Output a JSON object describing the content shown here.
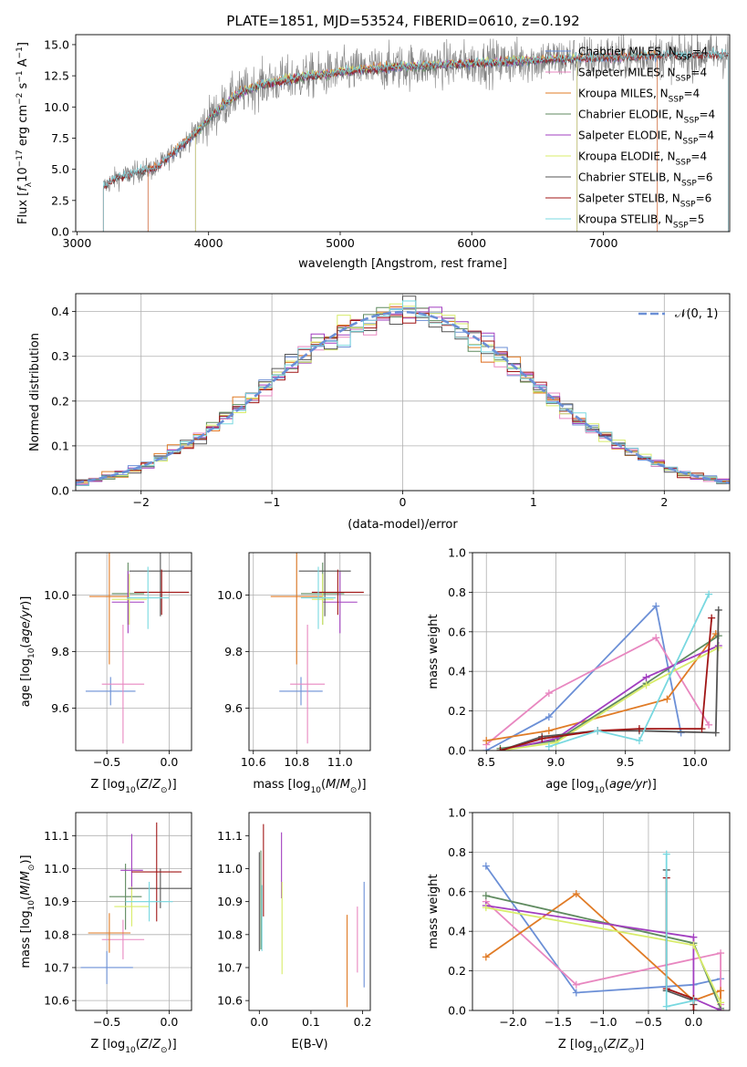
{
  "figure": {
    "title": "PLATE=1851, MJD=53524, FIBERID=0610, z=0.192"
  },
  "colors": {
    "chabrier_miles": "#6b8fd6",
    "salpeter_miles": "#e887c0",
    "kroupa_miles": "#e07b26",
    "chabrier_elodie": "#5f8a5f",
    "salpeter_elodie": "#a23fc0",
    "kroupa_elodie": "#d8ec6a",
    "chabrier_stelib": "#555555",
    "salpeter_stelib": "#a01515",
    "kroupa_stelib": "#78d8e0",
    "data_spectrum": "#808080",
    "normal_curve": "#6b8fd6",
    "grid": "#b0b0b0"
  },
  "chart_data": [
    {
      "id": "spectrum",
      "type": "line",
      "title": "PLATE=1851, MJD=53524, FIBERID=0610, z=0.192",
      "xlabel": "wavelength [Angstrom, rest frame]",
      "ylabel": "Flux [f_λ10^-17 erg cm^-2 s^-1 A^-1]",
      "xlim": [
        2990,
        7960
      ],
      "ylim": [
        0,
        15.8
      ],
      "xticks": [
        3000,
        4000,
        5000,
        6000,
        7000
      ],
      "yticks": [
        0.0,
        2.5,
        5.0,
        7.5,
        10.0,
        12.5,
        15.0
      ],
      "grid": false,
      "legend_position": "top-right",
      "legend": [
        "Chabrier MILES, N_SSP=4",
        "Salpeter MILES, N_SSP=4",
        "Kroupa MILES, N_SSP=4",
        "Chabrier ELODIE, N_SSP=4",
        "Salpeter ELODIE, N_SSP=4",
        "Kroupa ELODIE, N_SSP=4",
        "Chabrier STELIB, N_SSP=6",
        "Salpeter STELIB, N_SSP=6",
        "Kroupa STELIB, N_SSP=5"
      ],
      "continuum": {
        "x": [
          3200,
          3300,
          3400,
          3500,
          3600,
          3700,
          3800,
          3900,
          4000,
          4100,
          4200,
          4300,
          4400,
          4600,
          4800,
          5000,
          5200,
          5400,
          5600,
          5800,
          6000,
          6200,
          6400,
          6600,
          6800,
          7000,
          7200,
          7400,
          7600,
          7800,
          7950
        ],
        "y": [
          3.6,
          4.3,
          4.6,
          4.9,
          5.1,
          6.0,
          7.0,
          7.9,
          9.0,
          10.0,
          10.9,
          11.4,
          11.8,
          12.2,
          12.5,
          12.8,
          13.0,
          13.2,
          13.3,
          13.4,
          13.5,
          13.6,
          13.7,
          13.8,
          13.9,
          14.0,
          14.0,
          14.1,
          14.1,
          14.2,
          14.2
        ]
      },
      "model_ranges": {
        "chabrier_miles": [
          3540,
          7410
        ],
        "salpeter_miles": [
          3540,
          7410
        ],
        "kroupa_miles": [
          3540,
          7410
        ],
        "chabrier_elodie": [
          3900,
          6800
        ],
        "salpeter_elodie": [
          3900,
          6800
        ],
        "kroupa_elodie": [
          3900,
          6800
        ],
        "chabrier_stelib": [
          3200,
          7950
        ],
        "salpeter_stelib": [
          3200,
          7950
        ],
        "kroupa_stelib": [
          3200,
          7950
        ]
      }
    },
    {
      "id": "residual_hist",
      "type": "line",
      "xlabel": "(data-model)/error",
      "ylabel": "Normed distribution",
      "xlim": [
        -2.5,
        2.5
      ],
      "ylim": [
        0,
        0.44
      ],
      "xticks": [
        -2,
        -1,
        0,
        1,
        2
      ],
      "yticks": [
        0.0,
        0.1,
        0.2,
        0.3,
        0.4
      ],
      "grid": true,
      "legend_position": "top-right",
      "legend": [
        "N(0,1)"
      ],
      "bin_width": 0.1
    },
    {
      "id": "age_vs_z",
      "type": "scatter",
      "xlabel": "Z [log10(Z/Z⊙)]",
      "ylabel": "age [log10(age/yr)]",
      "xlim": [
        -0.75,
        0.18
      ],
      "ylim": [
        9.45,
        10.15
      ],
      "xticks": [
        -0.5,
        0.0
      ],
      "yticks": [
        9.6,
        9.8,
        10.0
      ],
      "grid": true,
      "points": [
        {
          "series": "chabrier_miles",
          "x": -0.47,
          "y": 9.66,
          "xerr": 0.2,
          "yerr": 0.05
        },
        {
          "series": "salpeter_miles",
          "x": -0.37,
          "y": 9.685,
          "xerr": 0.17,
          "yerr": 0.21
        },
        {
          "series": "kroupa_miles",
          "x": -0.48,
          "y": 9.995,
          "xerr": 0.16,
          "yerr": 0.24
        },
        {
          "series": "chabrier_elodie",
          "x": -0.33,
          "y": 10.005,
          "xerr": 0.13,
          "yerr": 0.11
        },
        {
          "series": "salpeter_elodie",
          "x": -0.33,
          "y": 9.975,
          "xerr": 0.13,
          "yerr": 0.11
        },
        {
          "series": "kroupa_elodie",
          "x": -0.32,
          "y": 9.985,
          "xerr": 0.14,
          "yerr": 0.09
        },
        {
          "series": "chabrier_stelib",
          "x": -0.07,
          "y": 10.085,
          "xerr": 0.25,
          "yerr": 0.16
        },
        {
          "series": "salpeter_stelib",
          "x": -0.06,
          "y": 10.01,
          "xerr": 0.22,
          "yerr": 0.08
        },
        {
          "series": "kroupa_stelib",
          "x": -0.17,
          "y": 9.99,
          "xerr": 0.17,
          "yerr": 0.11
        }
      ]
    },
    {
      "id": "age_vs_mass",
      "type": "scatter",
      "xlabel": "mass [log10(M/M⊙)]",
      "ylabel": "",
      "xlim": [
        10.58,
        11.14
      ],
      "ylim": [
        9.45,
        10.15
      ],
      "xticks": [
        10.6,
        10.8,
        11.0
      ],
      "yticks": [
        9.6,
        9.8,
        10.0
      ],
      "grid": true,
      "points": [
        {
          "series": "chabrier_miles",
          "x": 10.82,
          "y": 9.66,
          "xerr": 0.1,
          "yerr": 0.05
        },
        {
          "series": "salpeter_miles",
          "x": 10.85,
          "y": 9.685,
          "xerr": 0.08,
          "yerr": 0.21
        },
        {
          "series": "kroupa_miles",
          "x": 10.8,
          "y": 9.995,
          "xerr": 0.12,
          "yerr": 0.24
        },
        {
          "series": "chabrier_elodie",
          "x": 10.92,
          "y": 10.005,
          "xerr": 0.1,
          "yerr": 0.11
        },
        {
          "series": "salpeter_elodie",
          "x": 11.0,
          "y": 9.975,
          "xerr": 0.08,
          "yerr": 0.11
        },
        {
          "series": "kroupa_elodie",
          "x": 10.92,
          "y": 9.985,
          "xerr": 0.05,
          "yerr": 0.09
        },
        {
          "series": "chabrier_stelib",
          "x": 10.93,
          "y": 10.085,
          "xerr": 0.12,
          "yerr": 0.16
        },
        {
          "series": "salpeter_stelib",
          "x": 10.99,
          "y": 10.01,
          "xerr": 0.12,
          "yerr": 0.08
        },
        {
          "series": "kroupa_stelib",
          "x": 10.9,
          "y": 9.99,
          "xerr": 0.08,
          "yerr": 0.11
        }
      ]
    },
    {
      "id": "mass_weight_vs_age",
      "type": "line",
      "xlabel": "age [log10(age/yr)]",
      "ylabel": "mass weight",
      "xlim": [
        8.4,
        10.25
      ],
      "ylim": [
        0.0,
        1.0
      ],
      "xticks": [
        8.5,
        9.0,
        9.5,
        10.0
      ],
      "yticks": [
        0.0,
        0.2,
        0.4,
        0.6,
        0.8,
        1.0
      ],
      "grid": true,
      "series": [
        {
          "key": "chabrier_miles",
          "x": [
            8.5,
            8.95,
            9.72,
            9.9
          ],
          "y": [
            0.0,
            0.17,
            0.73,
            0.09
          ]
        },
        {
          "key": "salpeter_miles",
          "x": [
            8.5,
            8.95,
            9.72,
            10.1
          ],
          "y": [
            0.03,
            0.29,
            0.57,
            0.13
          ]
        },
        {
          "key": "kroupa_miles",
          "x": [
            8.5,
            8.95,
            9.8,
            10.15
          ],
          "y": [
            0.05,
            0.1,
            0.26,
            0.59
          ]
        },
        {
          "key": "chabrier_elodie",
          "x": [
            8.6,
            9.0,
            9.65,
            10.17
          ],
          "y": [
            0.01,
            0.05,
            0.34,
            0.58
          ]
        },
        {
          "key": "salpeter_elodie",
          "x": [
            8.6,
            9.0,
            9.65,
            10.17
          ],
          "y": [
            0.0,
            0.06,
            0.37,
            0.53
          ]
        },
        {
          "key": "kroupa_elodie",
          "x": [
            8.6,
            9.0,
            9.65,
            10.17
          ],
          "y": [
            0.0,
            0.04,
            0.33,
            0.52
          ]
        },
        {
          "key": "chabrier_stelib",
          "x": [
            8.6,
            8.9,
            9.3,
            9.6,
            10.15,
            10.17
          ],
          "y": [
            0.0,
            0.07,
            0.1,
            0.1,
            0.09,
            0.71
          ]
        },
        {
          "key": "salpeter_stelib",
          "x": [
            8.6,
            8.9,
            9.3,
            9.6,
            10.05,
            10.12
          ],
          "y": [
            0.0,
            0.06,
            0.1,
            0.11,
            0.11,
            0.67
          ]
        },
        {
          "key": "kroupa_stelib",
          "x": [
            8.95,
            9.3,
            9.6,
            10.1
          ],
          "y": [
            0.02,
            0.1,
            0.05,
            0.79
          ]
        }
      ]
    },
    {
      "id": "mass_vs_z",
      "type": "scatter",
      "xlabel": "Z [log10(Z/Z⊙)]",
      "ylabel": "mass [log10(M/M⊙)]",
      "xlim": [
        -0.75,
        0.18
      ],
      "ylim": [
        10.57,
        11.17
      ],
      "xticks": [
        -0.5,
        0.0
      ],
      "yticks": [
        10.6,
        10.7,
        10.8,
        10.9,
        11.0,
        11.1
      ],
      "grid": true,
      "points": [
        {
          "series": "chabrier_miles",
          "x": -0.5,
          "y": 10.7,
          "xerr": 0.21,
          "yerr": 0.05
        },
        {
          "series": "salpeter_miles",
          "x": -0.37,
          "y": 10.785,
          "xerr": 0.17,
          "yerr": 0.06
        },
        {
          "series": "kroupa_miles",
          "x": -0.48,
          "y": 10.805,
          "xerr": 0.17,
          "yerr": 0.06
        },
        {
          "series": "chabrier_elodie",
          "x": -0.35,
          "y": 10.915,
          "xerr": 0.13,
          "yerr": 0.1
        },
        {
          "series": "salpeter_elodie",
          "x": -0.3,
          "y": 10.995,
          "xerr": 0.09,
          "yerr": 0.11
        },
        {
          "series": "kroupa_elodie",
          "x": -0.3,
          "y": 10.885,
          "xerr": 0.14,
          "yerr": 0.06
        },
        {
          "series": "chabrier_stelib",
          "x": -0.07,
          "y": 10.94,
          "xerr": 0.26,
          "yerr": 0.06
        },
        {
          "series": "salpeter_stelib",
          "x": -0.1,
          "y": 10.99,
          "xerr": 0.2,
          "yerr": 0.15
        },
        {
          "series": "kroupa_stelib",
          "x": -0.16,
          "y": 10.9,
          "xerr": 0.19,
          "yerr": 0.06
        }
      ]
    },
    {
      "id": "mass_vs_ebv",
      "type": "scatter",
      "xlabel": "E(B-V)",
      "ylabel": "",
      "xlim": [
        -0.02,
        0.215
      ],
      "ylim": [
        10.57,
        11.17
      ],
      "xticks": [
        0.0,
        0.1,
        0.2
      ],
      "yticks": [
        10.6,
        10.7,
        10.8,
        10.9,
        11.0,
        11.1
      ],
      "grid": false,
      "points": [
        {
          "series": "chabrier_miles",
          "x": 0.203,
          "y": 10.8,
          "xerr": 0,
          "yerr": 0.16
        },
        {
          "series": "salpeter_miles",
          "x": 0.19,
          "y": 10.785,
          "xerr": 0,
          "yerr": 0.1
        },
        {
          "series": "kroupa_miles",
          "x": 0.17,
          "y": 10.72,
          "xerr": 0,
          "yerr": 0.14
        },
        {
          "series": "chabrier_elodie",
          "x": 0.003,
          "y": 10.905,
          "xerr": 0,
          "yerr": 0.15
        },
        {
          "series": "salpeter_elodie",
          "x": 0.043,
          "y": 11.01,
          "xerr": 0,
          "yerr": 0.1
        },
        {
          "series": "kroupa_elodie",
          "x": 0.044,
          "y": 10.82,
          "xerr": 0,
          "yerr": 0.14
        },
        {
          "series": "chabrier_stelib",
          "x": 0.0,
          "y": 10.9,
          "xerr": 0,
          "yerr": 0.15
        },
        {
          "series": "salpeter_stelib",
          "x": 0.008,
          "y": 10.995,
          "xerr": 0,
          "yerr": 0.14
        },
        {
          "series": "kroupa_stelib",
          "x": 0.005,
          "y": 10.85,
          "xerr": 0,
          "yerr": 0.1
        }
      ]
    },
    {
      "id": "mass_weight_vs_z",
      "type": "line",
      "xlabel": "Z [log10(Z/Z⊙)]",
      "ylabel": "mass weight",
      "xlim": [
        -2.45,
        0.4
      ],
      "ylim": [
        0.0,
        1.0
      ],
      "xticks": [
        -2.0,
        -1.5,
        -1.0,
        -0.5,
        0.0
      ],
      "yticks": [
        0.0,
        0.2,
        0.4,
        0.6,
        0.8,
        1.0
      ],
      "grid": true,
      "series": [
        {
          "key": "chabrier_miles",
          "x": [
            -2.3,
            -1.3,
            0.0,
            0.3
          ],
          "y": [
            0.73,
            0.09,
            0.13,
            0.16
          ]
        },
        {
          "key": "salpeter_miles",
          "x": [
            -2.3,
            -1.3,
            0.3,
            0.3
          ],
          "y": [
            0.55,
            0.13,
            0.29,
            0.03
          ]
        },
        {
          "key": "kroupa_miles",
          "x": [
            -2.3,
            -1.3,
            0.0,
            0.3,
            0.3
          ],
          "y": [
            0.27,
            0.59,
            0.05,
            0.1,
            0.0
          ]
        },
        {
          "key": "chabrier_elodie",
          "x": [
            -2.3,
            0.0,
            0.3
          ],
          "y": [
            0.58,
            0.34,
            0.01
          ]
        },
        {
          "key": "salpeter_elodie",
          "x": [
            -2.3,
            0.0,
            0.0,
            0.3
          ],
          "y": [
            0.53,
            0.37,
            0.06,
            0.0
          ]
        },
        {
          "key": "kroupa_elodie",
          "x": [
            -2.3,
            0.0,
            0.3
          ],
          "y": [
            0.52,
            0.33,
            0.04
          ]
        },
        {
          "key": "chabrier_stelib",
          "x": [
            -0.3,
            -0.3,
            0.0,
            0.0
          ],
          "y": [
            0.71,
            0.1,
            0.05,
            0.03
          ]
        },
        {
          "key": "salpeter_stelib",
          "x": [
            -0.3,
            -0.3,
            0.0,
            0.0
          ],
          "y": [
            0.67,
            0.11,
            0.06,
            0.0
          ]
        },
        {
          "key": "kroupa_stelib",
          "x": [
            -0.3,
            -0.3,
            0.0
          ],
          "y": [
            0.79,
            0.02,
            0.05
          ]
        }
      ]
    }
  ]
}
